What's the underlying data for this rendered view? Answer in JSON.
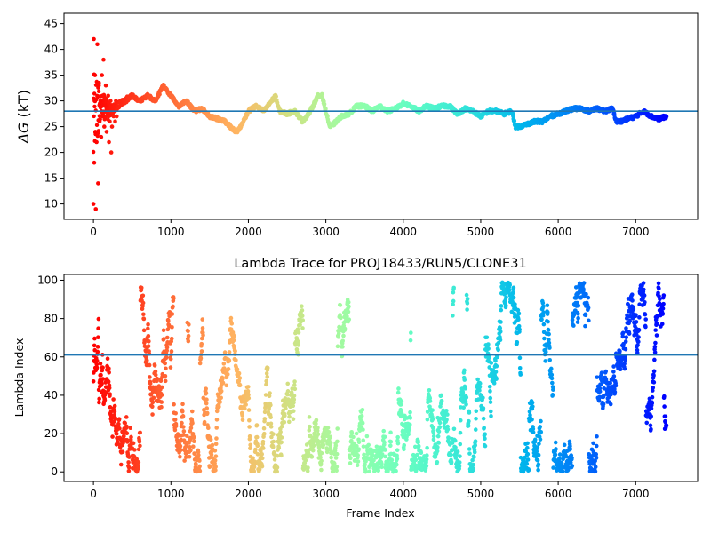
{
  "chart_data": [
    {
      "type": "scatter",
      "title": "",
      "xlabel": "",
      "ylabel": "ΔG (kT)",
      "ylabel_var": "ΔG",
      "ylabel_unit": "(kT)",
      "xlim": [
        -380,
        7800
      ],
      "ylim": [
        7,
        47
      ],
      "xticks": [
        0,
        1000,
        2000,
        3000,
        4000,
        5000,
        6000,
        7000
      ],
      "xtick_labels": [
        "0",
        "1000",
        "2000",
        "3000",
        "4000",
        "5000",
        "6000",
        "7000"
      ],
      "yticks": [
        10,
        15,
        20,
        25,
        30,
        35,
        40,
        45
      ],
      "ytick_labels": [
        "10",
        "15",
        "20",
        "25",
        "30",
        "35",
        "40",
        "45"
      ],
      "grid": false,
      "colormap": "rainbow (red at frame 0 to violet at last frame)",
      "reference_line": {
        "y": 28.0,
        "color": "#1f77b4"
      },
      "frame_range": [
        0,
        7400
      ],
      "description_of_series": "Free-energy estimate per frame; large scatter (9-42 kT) in the first ~300 frames, converging to ~25-32 kT afterwards",
      "trace_knots": {
        "x": [
          0,
          100,
          200,
          300,
          400,
          500,
          600,
          700,
          800,
          900,
          950,
          1000,
          1100,
          1200,
          1300,
          1400,
          1500,
          1600,
          1700,
          1800,
          1850,
          1900,
          2000,
          2100,
          2200,
          2300,
          2350,
          2400,
          2500,
          2600,
          2700,
          2800,
          2900,
          2950,
          3000,
          3050,
          3100,
          3200,
          3300,
          3400,
          3500,
          3600,
          3700,
          3800,
          3900,
          4000,
          4100,
          4200,
          4300,
          4400,
          4500,
          4600,
          4700,
          4800,
          4900,
          5000,
          5100,
          5200,
          5300,
          5400,
          5450,
          5500,
          5600,
          5700,
          5800,
          5900,
          6000,
          6100,
          6200,
          6300,
          6400,
          6500,
          6600,
          6700,
          6750,
          6800,
          6900,
          7000,
          7100,
          7200,
          7300,
          7400
        ],
        "y": [
          28,
          29,
          28,
          29,
          30,
          31,
          30,
          31,
          30,
          33,
          32,
          31,
          29,
          30,
          28,
          28.5,
          27,
          26.5,
          26,
          24.5,
          24,
          25,
          28,
          29,
          28,
          30,
          31,
          28,
          27.5,
          28,
          26,
          28,
          31,
          31,
          28,
          25,
          25.5,
          27,
          27.5,
          29,
          29,
          28,
          29,
          28,
          28.5,
          29.5,
          29,
          28,
          29,
          28.5,
          29,
          29,
          27.5,
          28.5,
          28,
          27,
          28,
          28,
          27.5,
          28,
          25,
          25,
          25.5,
          26,
          26,
          27,
          27.5,
          28,
          28.5,
          28.5,
          28,
          28.5,
          28,
          28.5,
          26,
          26,
          26.5,
          27,
          28,
          27,
          26.5,
          27
        ]
      },
      "early_scatter_points": {
        "x": [
          0,
          5,
          10,
          15,
          20,
          25,
          30,
          40,
          50,
          60,
          70,
          80,
          90,
          100,
          110,
          120,
          130,
          140,
          150,
          160,
          170,
          180,
          190,
          200,
          210,
          220,
          230,
          240,
          250,
          260,
          270,
          280,
          290,
          300
        ],
        "y": [
          10,
          42,
          18,
          30,
          35,
          24,
          9,
          22,
          41,
          14,
          33,
          26,
          30,
          23,
          35,
          27,
          38,
          25,
          29,
          33,
          24,
          28,
          31,
          22,
          26,
          30,
          20,
          25,
          28,
          27,
          29,
          26,
          30,
          27
        ]
      }
    },
    {
      "type": "scatter",
      "title": "Lambda Trace for PROJ18433/RUN5/CLONE31",
      "xlabel": "Frame Index",
      "ylabel": "Lambda Index",
      "xlim": [
        -380,
        7800
      ],
      "ylim": [
        -5,
        103
      ],
      "xticks": [
        0,
        1000,
        2000,
        3000,
        4000,
        5000,
        6000,
        7000
      ],
      "xtick_labels": [
        "0",
        "1000",
        "2000",
        "3000",
        "4000",
        "5000",
        "6000",
        "7000"
      ],
      "yticks": [
        0,
        20,
        40,
        60,
        80,
        100
      ],
      "ytick_labels": [
        "0",
        "20",
        "40",
        "60",
        "80",
        "100"
      ],
      "grid": false,
      "colormap": "rainbow (red at frame 0 to violet at last frame)",
      "reference_line": {
        "y": 61,
        "color": "#1f77b4"
      },
      "frame_range": [
        0,
        7400
      ],
      "lambda_range": [
        0,
        99
      ],
      "description_of_series": "Lambda index (0-99) visited at each frame; dense random-walk scatter across the full lambda range"
    }
  ]
}
